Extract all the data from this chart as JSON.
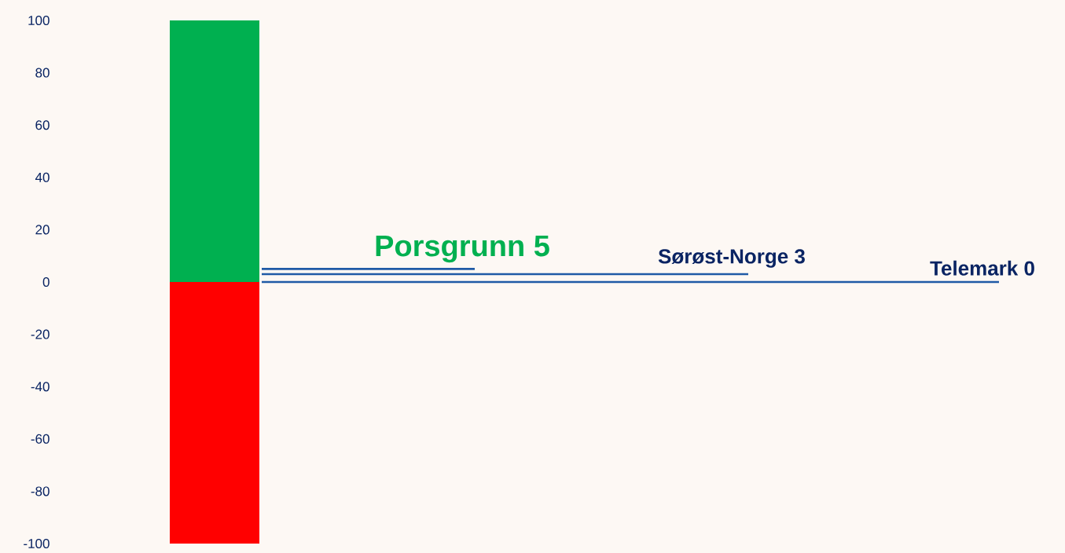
{
  "chart_data": {
    "type": "bar",
    "stacked": true,
    "categories": [
      null
    ],
    "ylim": [
      -100,
      100
    ],
    "yticks": [
      -100,
      -80,
      -60,
      -40,
      -20,
      0,
      20,
      40,
      60,
      80,
      100
    ],
    "series": [
      {
        "color": "#00b050",
        "values": [
          100
        ]
      },
      {
        "color": "#ff0000",
        "values": [
          -100
        ]
      }
    ],
    "ref_lines": [
      {
        "axis": "y",
        "value": 5,
        "label": "Porsgrunn 5",
        "color": "#1f5aa6"
      },
      {
        "axis": "y",
        "value": 3,
        "label": "Sørøst-Norge 3",
        "color": "#1f5aa6"
      },
      {
        "axis": "y",
        "value": 0,
        "label": "Telemark 0",
        "color": "#1f5aa6"
      }
    ]
  }
}
